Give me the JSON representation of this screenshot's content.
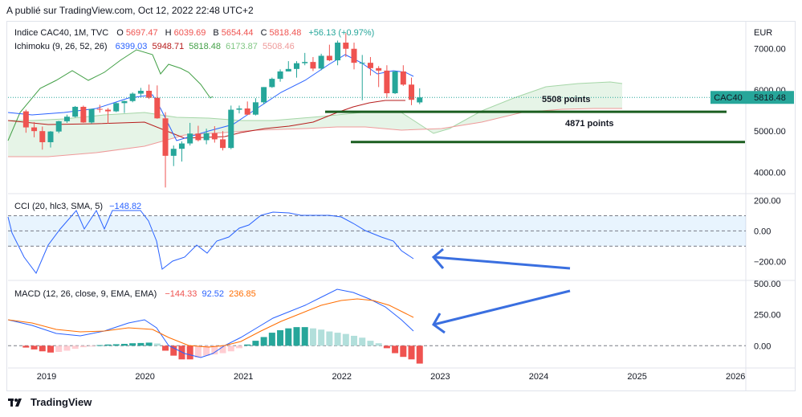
{
  "header": {
    "published": "A publié sur TradingView.com, Oct 12, 2022 22:48 UTC+2"
  },
  "legend_main": {
    "symbol": "Indice CAC40, 1M, TVC",
    "o_label": "O",
    "o_value": "5697.47",
    "h_label": "H",
    "h_value": "6039.69",
    "l_label": "B",
    "l_value": "5654.44",
    "c_label": "C",
    "c_value": "5818.48",
    "change": "+56.13 (+0.97%)"
  },
  "legend_ichimoku": {
    "name": "Ichimoku (9, 26, 52, 26)",
    "v1": "6399.03",
    "v2": "5948.71",
    "v3": "5818.48",
    "v4": "6173.87",
    "v5": "5508.46"
  },
  "legend_cci": {
    "name": "CCI (20, hlc3, SMA, 5)",
    "value": "−148.82"
  },
  "legend_macd": {
    "name": "MACD (12, 26, close, 9, EMA, EMA)",
    "v1": "−144.33",
    "v2": "92.52",
    "v3": "236.85"
  },
  "price_axis": {
    "currency": "EUR",
    "ticks": [
      "7000.00",
      "6000.00",
      "5000.00",
      "4000.00"
    ]
  },
  "cci_axis": {
    "ticks": [
      "200.00",
      "0.00",
      "−200.00"
    ]
  },
  "macd_axis": {
    "ticks": [
      "500.00",
      "250.00",
      "0.00"
    ]
  },
  "price_label": {
    "symbol": "CAC40",
    "value": "5818.48"
  },
  "annotations": {
    "level1": "5508 points",
    "level2": "4871 points"
  },
  "x_axis": {
    "ticks": [
      "2019",
      "2020",
      "2021",
      "2022",
      "2023",
      "2024",
      "2025",
      "2026"
    ]
  },
  "footer": {
    "brand": "TradingView"
  },
  "colors": {
    "up": "#26a69a",
    "down": "#ef5350",
    "tenkan": "#2962ff",
    "kijun": "#b71c1c",
    "chikou": "#43a047",
    "spanA": "#a5d6a7",
    "spanB": "#ef9a9a",
    "annot": "#1b5e20",
    "cci": "#2962ff",
    "macd": "#2962ff",
    "signal": "#ff6d00"
  },
  "chart_data": [
    {
      "type": "candlestick",
      "title": "Indice CAC40, 1M, TVC",
      "ylabel": "EUR",
      "ylim": [
        3500,
        7600
      ],
      "x_range": [
        "2018-09",
        "2026-03"
      ],
      "candles_monthly": [
        {
          "t": "2018-10",
          "o": 5480,
          "h": 5520,
          "l": 4960,
          "c": 5090
        },
        {
          "t": "2018-11",
          "o": 5090,
          "h": 5220,
          "l": 4850,
          "c": 5000
        },
        {
          "t": "2018-12",
          "o": 5000,
          "h": 5110,
          "l": 4550,
          "c": 4730
        },
        {
          "t": "2019-01",
          "o": 4730,
          "h": 5000,
          "l": 4600,
          "c": 4990
        },
        {
          "t": "2019-02",
          "o": 4990,
          "h": 5250,
          "l": 4950,
          "c": 5240
        },
        {
          "t": "2019-03",
          "o": 5240,
          "h": 5400,
          "l": 5200,
          "c": 5350
        },
        {
          "t": "2019-04",
          "o": 5350,
          "h": 5610,
          "l": 5330,
          "c": 5590
        },
        {
          "t": "2019-05",
          "o": 5590,
          "h": 5620,
          "l": 5200,
          "c": 5210
        },
        {
          "t": "2019-06",
          "o": 5210,
          "h": 5540,
          "l": 5180,
          "c": 5540
        },
        {
          "t": "2019-07",
          "o": 5540,
          "h": 5640,
          "l": 5450,
          "c": 5520
        },
        {
          "t": "2019-08",
          "o": 5520,
          "h": 5560,
          "l": 5180,
          "c": 5480
        },
        {
          "t": "2019-09",
          "o": 5480,
          "h": 5700,
          "l": 5460,
          "c": 5680
        },
        {
          "t": "2019-10",
          "o": 5680,
          "h": 5740,
          "l": 5440,
          "c": 5730
        },
        {
          "t": "2019-11",
          "o": 5730,
          "h": 5940,
          "l": 5700,
          "c": 5910
        },
        {
          "t": "2019-12",
          "o": 5910,
          "h": 6050,
          "l": 5850,
          "c": 5980
        },
        {
          "t": "2020-01",
          "o": 5980,
          "h": 6130,
          "l": 5780,
          "c": 5810
        },
        {
          "t": "2020-02",
          "o": 5810,
          "h": 6110,
          "l": 5300,
          "c": 5310
        },
        {
          "t": "2020-03",
          "o": 5310,
          "h": 5460,
          "l": 3630,
          "c": 4400
        },
        {
          "t": "2020-04",
          "o": 4400,
          "h": 4650,
          "l": 4150,
          "c": 4570
        },
        {
          "t": "2020-05",
          "o": 4570,
          "h": 4750,
          "l": 4260,
          "c": 4700
        },
        {
          "t": "2020-06",
          "o": 4700,
          "h": 5200,
          "l": 4650,
          "c": 4940
        },
        {
          "t": "2020-07",
          "o": 4940,
          "h": 5130,
          "l": 4750,
          "c": 4780
        },
        {
          "t": "2020-08",
          "o": 4780,
          "h": 5060,
          "l": 4680,
          "c": 4950
        },
        {
          "t": "2020-09",
          "o": 4950,
          "h": 5120,
          "l": 4720,
          "c": 4800
        },
        {
          "t": "2020-10",
          "o": 4800,
          "h": 5000,
          "l": 4530,
          "c": 4590
        },
        {
          "t": "2020-11",
          "o": 4590,
          "h": 5620,
          "l": 4560,
          "c": 5520
        },
        {
          "t": "2020-12",
          "o": 5520,
          "h": 5620,
          "l": 5430,
          "c": 5550
        },
        {
          "t": "2021-01",
          "o": 5550,
          "h": 5720,
          "l": 5390,
          "c": 5400
        },
        {
          "t": "2021-02",
          "o": 5400,
          "h": 5800,
          "l": 5380,
          "c": 5700
        },
        {
          "t": "2021-03",
          "o": 5700,
          "h": 6070,
          "l": 5650,
          "c": 6070
        },
        {
          "t": "2021-04",
          "o": 6070,
          "h": 6300,
          "l": 6050,
          "c": 6270
        },
        {
          "t": "2021-05",
          "o": 6270,
          "h": 6500,
          "l": 6200,
          "c": 6450
        },
        {
          "t": "2021-06",
          "o": 6450,
          "h": 6700,
          "l": 6450,
          "c": 6510
        },
        {
          "t": "2021-07",
          "o": 6510,
          "h": 6700,
          "l": 6300,
          "c": 6650
        },
        {
          "t": "2021-08",
          "o": 6650,
          "h": 6900,
          "l": 6600,
          "c": 6680
        },
        {
          "t": "2021-09",
          "o": 6680,
          "h": 6800,
          "l": 6460,
          "c": 6520
        },
        {
          "t": "2021-10",
          "o": 6520,
          "h": 6880,
          "l": 6480,
          "c": 6830
        },
        {
          "t": "2021-11",
          "o": 6830,
          "h": 7100,
          "l": 6700,
          "c": 6720
        },
        {
          "t": "2021-12",
          "o": 6720,
          "h": 7200,
          "l": 6600,
          "c": 7150
        },
        {
          "t": "2022-01",
          "o": 7150,
          "h": 7380,
          "l": 6800,
          "c": 7000
        },
        {
          "t": "2022-02",
          "o": 7000,
          "h": 7150,
          "l": 6500,
          "c": 6660
        },
        {
          "t": "2022-03",
          "o": 6660,
          "h": 6850,
          "l": 5750,
          "c": 6660
        },
        {
          "t": "2022-04",
          "o": 6660,
          "h": 6800,
          "l": 6350,
          "c": 6530
        },
        {
          "t": "2022-05",
          "o": 6530,
          "h": 6580,
          "l": 6070,
          "c": 6470
        },
        {
          "t": "2022-06",
          "o": 6470,
          "h": 6600,
          "l": 5800,
          "c": 5920
        },
        {
          "t": "2022-07",
          "o": 5920,
          "h": 6470,
          "l": 5900,
          "c": 6450
        },
        {
          "t": "2022-08",
          "o": 6450,
          "h": 6600,
          "l": 6100,
          "c": 6130
        },
        {
          "t": "2022-09",
          "o": 6130,
          "h": 6300,
          "l": 5630,
          "c": 5760
        },
        {
          "t": "2022-10",
          "o": 5697.47,
          "h": 6039.69,
          "l": 5654.44,
          "c": 5818.48
        }
      ],
      "horizontal_levels": [
        5508,
        4871
      ],
      "last_price": 5818.48
    },
    {
      "type": "line",
      "title": "CCI (20, hlc3, SMA, 5)",
      "ylim": [
        -320,
        240
      ],
      "bands": [
        100,
        -100
      ],
      "last_value": -148.82
    },
    {
      "type": "bar",
      "title": "MACD (12, 26, close, 9, EMA, EMA)",
      "ylim": [
        -160,
        520
      ],
      "last_values": {
        "histogram": -144.33,
        "macd": 92.52,
        "signal": 236.85
      }
    }
  ]
}
